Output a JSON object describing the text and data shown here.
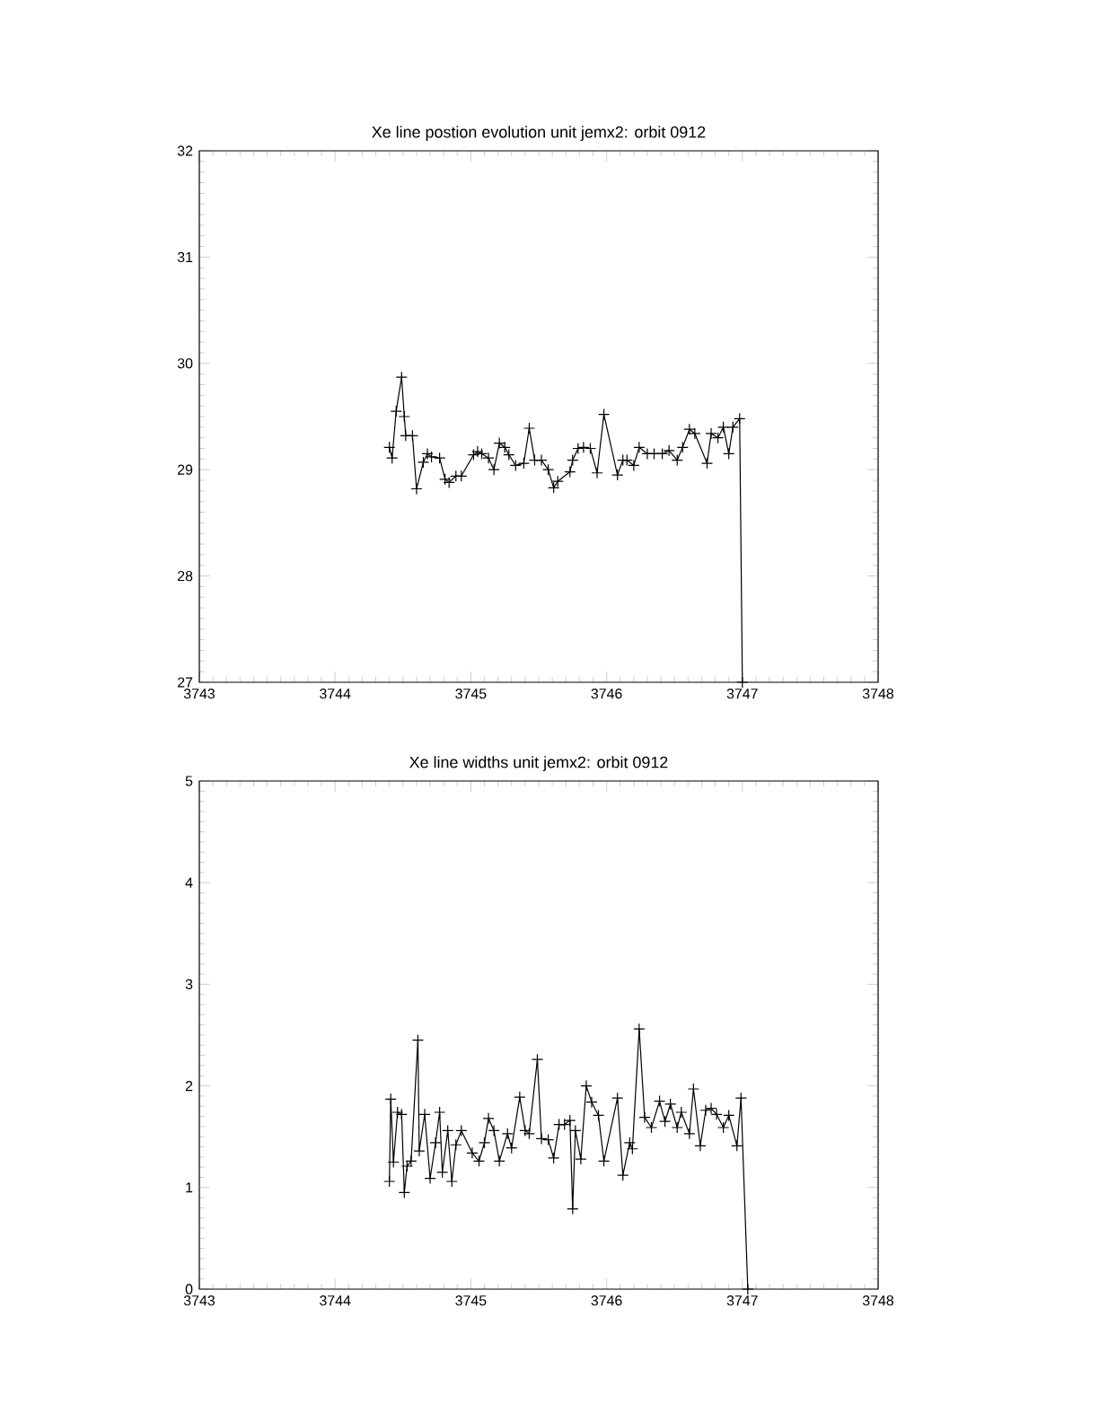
{
  "chart_data": [
    {
      "type": "line",
      "title": "Xe line postion evolution unit jemx2: orbit 0912",
      "marker": "cross",
      "color": "#000000",
      "x": [
        3744.4,
        3744.42,
        3744.45,
        3744.49,
        3744.51,
        3744.52,
        3744.57,
        3744.6,
        3744.65,
        3744.68,
        3744.71,
        3744.77,
        3744.81,
        3744.84,
        3744.89,
        3744.93,
        3745.02,
        3745.05,
        3745.08,
        3745.13,
        3745.17,
        3745.21,
        3745.25,
        3745.28,
        3745.33,
        3745.39,
        3745.43,
        3745.47,
        3745.52,
        3745.57,
        3745.61,
        3745.64,
        3745.73,
        3745.75,
        3745.79,
        3745.83,
        3745.88,
        3745.93,
        3745.98,
        3746.08,
        3746.12,
        3746.15,
        3746.2,
        3746.24,
        3746.3,
        3746.35,
        3746.41,
        3746.46,
        3746.52,
        3746.56,
        3746.61,
        3746.65,
        3746.74,
        3746.77,
        3746.82,
        3746.86,
        3746.9,
        3746.93,
        3746.98,
        3747.0
      ],
      "values": [
        29.21,
        29.11,
        29.55,
        29.87,
        29.5,
        29.32,
        29.32,
        28.82,
        29.07,
        29.15,
        29.12,
        29.11,
        28.91,
        28.88,
        28.94,
        28.94,
        29.14,
        29.17,
        29.15,
        29.11,
        29.0,
        29.25,
        29.21,
        29.14,
        29.04,
        29.06,
        29.39,
        29.09,
        29.09,
        29.0,
        28.83,
        28.89,
        28.98,
        29.09,
        29.2,
        29.21,
        29.2,
        28.97,
        29.52,
        28.95,
        29.09,
        29.09,
        29.04,
        29.21,
        29.15,
        29.15,
        29.15,
        29.18,
        29.09,
        29.21,
        29.38,
        29.34,
        29.06,
        29.34,
        29.3,
        29.4,
        29.15,
        29.4,
        29.48,
        27
      ],
      "xlim": [
        3743,
        3748
      ],
      "xticks": [
        3743,
        3744,
        3745,
        3746,
        3747,
        3748
      ],
      "ylim": [
        27,
        32
      ],
      "yticks": [
        27,
        28,
        29,
        30,
        31,
        32
      ]
    },
    {
      "type": "line",
      "title": "Xe line widths unit jemx2: orbit 0912",
      "marker": "cross",
      "color": "#000000",
      "x": [
        3744.4,
        3744.41,
        3744.43,
        3744.46,
        3744.49,
        3744.51,
        3744.53,
        3744.56,
        3744.61,
        3744.62,
        3744.66,
        3744.7,
        3744.74,
        3744.77,
        3744.79,
        3744.83,
        3744.86,
        3744.89,
        3744.93,
        3745.01,
        3745.06,
        3745.1,
        3745.13,
        3745.17,
        3745.21,
        3745.27,
        3745.3,
        3745.36,
        3745.4,
        3745.43,
        3745.49,
        3745.52,
        3745.57,
        3745.61,
        3745.65,
        3745.69,
        3745.73,
        3745.75,
        3745.77,
        3745.81,
        3745.85,
        3745.89,
        3745.94,
        3745.98,
        3746.08,
        3746.12,
        3746.17,
        3746.19,
        3746.24,
        3746.28,
        3746.33,
        3746.39,
        3746.43,
        3746.47,
        3746.52,
        3746.55,
        3746.61,
        3746.64,
        3746.69,
        3746.73,
        3746.77,
        3746.81,
        3746.86,
        3746.9,
        3746.96,
        3746.99,
        3747.04
      ],
      "values": [
        1.06,
        1.87,
        1.25,
        1.74,
        1.72,
        0.95,
        1.21,
        1.26,
        2.45,
        1.36,
        1.72,
        1.09,
        1.44,
        1.74,
        1.15,
        1.56,
        1.06,
        1.42,
        1.56,
        1.34,
        1.26,
        1.44,
        1.68,
        1.56,
        1.26,
        1.53,
        1.39,
        1.89,
        1.56,
        1.53,
        2.26,
        1.48,
        1.47,
        1.29,
        1.62,
        1.62,
        1.66,
        0.79,
        1.56,
        1.28,
        2.0,
        1.84,
        1.71,
        1.26,
        1.88,
        1.12,
        1.44,
        1.38,
        2.56,
        1.69,
        1.59,
        1.85,
        1.65,
        1.82,
        1.59,
        1.74,
        1.53,
        1.97,
        1.41,
        1.76,
        1.78,
        1.72,
        1.59,
        1.71,
        1.41,
        1.88,
        0
      ],
      "xlim": [
        3743,
        3748
      ],
      "xticks": [
        3743,
        3744,
        3745,
        3746,
        3747,
        3748
      ],
      "ylim": [
        0,
        5
      ],
      "yticks": [
        0,
        1,
        2,
        3,
        4,
        5
      ]
    }
  ]
}
